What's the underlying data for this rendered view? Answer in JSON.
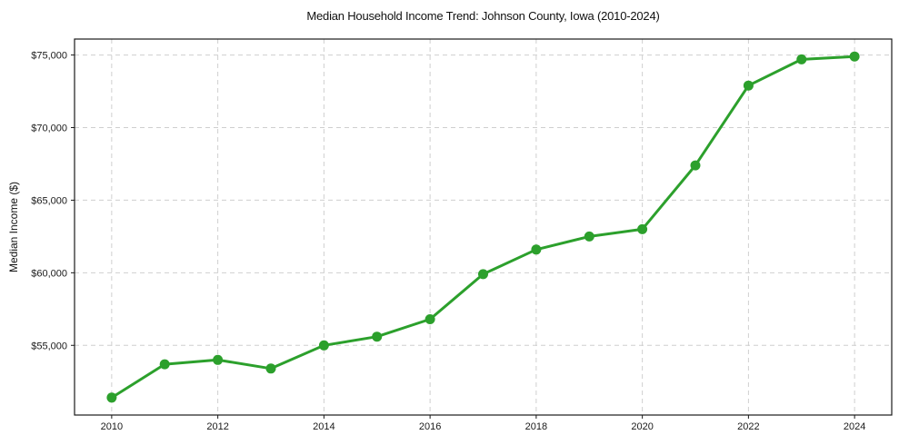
{
  "chart_data": {
    "type": "line",
    "title": "Median Household Income Trend: Johnson County, Iowa (2010-2024)",
    "xlabel": "",
    "ylabel": "Median Income ($)",
    "series_name": "Median household income",
    "x": [
      2010,
      2011,
      2012,
      2013,
      2014,
      2015,
      2016,
      2017,
      2018,
      2019,
      2020,
      2021,
      2022,
      2023,
      2024
    ],
    "values": [
      51400,
      53700,
      54000,
      53400,
      55000,
      55600,
      56800,
      59900,
      61600,
      62500,
      63000,
      67400,
      72900,
      74700,
      74900
    ],
    "xlim": [
      2009.3,
      2024.7
    ],
    "ylim": [
      50200,
      76100
    ],
    "x_ticks": [
      {
        "value": 2010,
        "label": "2010"
      },
      {
        "value": 2012,
        "label": "2012"
      },
      {
        "value": 2014,
        "label": "2014"
      },
      {
        "value": 2016,
        "label": "2016"
      },
      {
        "value": 2018,
        "label": "2018"
      },
      {
        "value": 2020,
        "label": "2020"
      },
      {
        "value": 2022,
        "label": "2022"
      },
      {
        "value": 2024,
        "label": "2024"
      }
    ],
    "y_ticks": [
      {
        "value": 55000,
        "label": "$55,000"
      },
      {
        "value": 60000,
        "label": "$60,000"
      },
      {
        "value": 65000,
        "label": "$65,000"
      },
      {
        "value": 70000,
        "label": "$70,000"
      },
      {
        "value": 75000,
        "label": "$75,000"
      }
    ],
    "grid": true,
    "grid_style": "dashed",
    "legend": false,
    "colors": {
      "line": "#2ca02c",
      "marker": "#2ca02c",
      "grid": "#cfcfcf",
      "spine": "#1a1a1a",
      "tick_text": "#1a1a1a",
      "background": "#ffffff"
    }
  }
}
